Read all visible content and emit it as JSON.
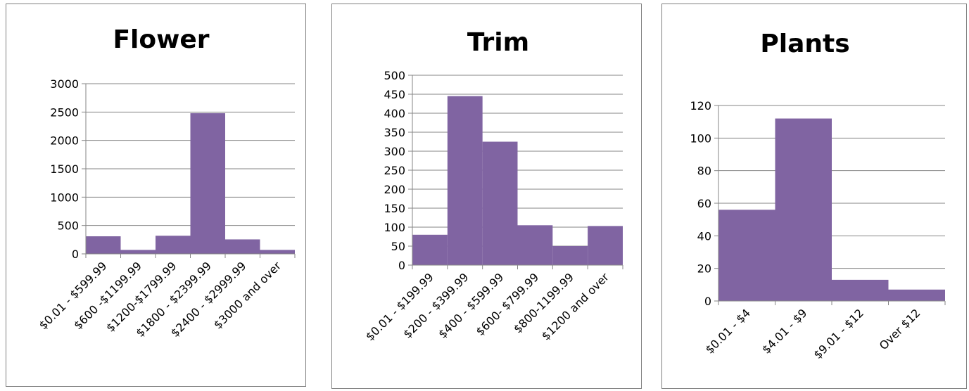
{
  "colors": {
    "bar": "#8064a2",
    "grid": "#868686",
    "axis": "#868686",
    "border": "#7f7f7f"
  },
  "chart_data": [
    {
      "type": "bar",
      "title": "Flower",
      "categories": [
        "$0.01 - $599.99",
        "$600 -$1199.99",
        "$1200-$1799.99",
        "$1800 - $2399.99",
        "$2400 - $2999.99",
        "$3000 and over"
      ],
      "values": [
        310,
        70,
        320,
        2480,
        255,
        70
      ],
      "yticks": [
        "0",
        "500",
        "1000",
        "1500",
        "2000",
        "2500",
        "3000"
      ],
      "ylim": [
        0,
        3000
      ],
      "grid": true,
      "xlabel": "",
      "ylabel": ""
    },
    {
      "type": "bar",
      "title": "Trim",
      "categories": [
        "$0.01 - $199.99",
        "$200 - $399.99",
        "$400 - $599.99",
        "$600- $799.99",
        "$800-1199.99",
        "$1200 and over"
      ],
      "values": [
        80,
        445,
        325,
        105,
        50,
        103
      ],
      "yticks": [
        "0",
        "50",
        "100",
        "150",
        "200",
        "250",
        "300",
        "350",
        "400",
        "450",
        "500"
      ],
      "ylim": [
        0,
        500
      ],
      "grid": true,
      "xlabel": "",
      "ylabel": ""
    },
    {
      "type": "bar",
      "title": "Plants",
      "categories": [
        "$0.01 - $4",
        "$4.01 - $9",
        "$9.01 - $12",
        "Over $12"
      ],
      "values": [
        56,
        112,
        13,
        7
      ],
      "yticks": [
        "0",
        "20",
        "40",
        "60",
        "80",
        "100",
        "120"
      ],
      "ylim": [
        0,
        120
      ],
      "grid": true,
      "xlabel": "",
      "ylabel": ""
    }
  ]
}
